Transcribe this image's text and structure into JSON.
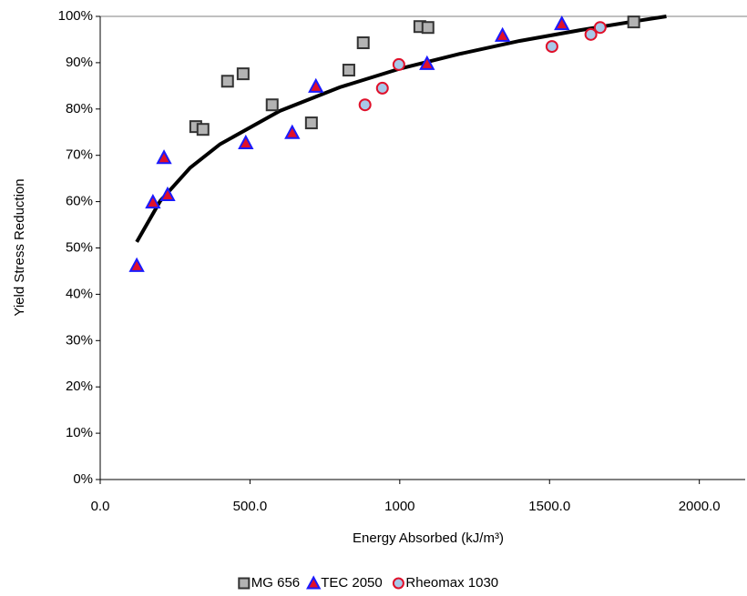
{
  "chart_data": {
    "type": "scatter",
    "xlabel": "Energy Absorbed (kJ/m³)",
    "ylabel": "Yield Stress Reduction",
    "xlim": [
      0,
      2150
    ],
    "xticks": [
      {
        "value": 0,
        "label": "0.0"
      },
      {
        "value": 500,
        "label": "500.0"
      },
      1000,
      {
        "value": 1500,
        "label": "1500.0"
      },
      {
        "value": 2000,
        "label": "2000.0"
      }
    ],
    "ylim": [
      0,
      100
    ],
    "yticks": [
      {
        "value": 0,
        "label": "0%"
      },
      {
        "value": 10,
        "label": "10%"
      },
      {
        "value": 20,
        "label": "20%"
      },
      {
        "value": 30,
        "label": "30%"
      },
      {
        "value": 40,
        "label": "40%"
      },
      {
        "value": 50,
        "label": "50%"
      },
      {
        "value": 60,
        "label": "60%"
      },
      {
        "value": 70,
        "label": "70%"
      },
      {
        "value": 80,
        "label": "80%"
      },
      {
        "value": 90,
        "label": "90%"
      },
      {
        "value": 100,
        "label": "100%"
      }
    ],
    "grid": false,
    "legend": "bottom",
    "series": [
      {
        "name": "MG 656",
        "marker": "square",
        "color": "#b3b3b3",
        "edgecolor": "#333333",
        "x": [
          319,
          343,
          425,
          477,
          574,
          705,
          830,
          878,
          1067,
          1094,
          1781
        ],
        "values": [
          76.2,
          75.6,
          86.0,
          87.6,
          80.9,
          77.0,
          88.4,
          94.3,
          97.8,
          97.6,
          98.8
        ]
      },
      {
        "name": "TEC 2050",
        "marker": "triangle",
        "color": "#e0102a",
        "edgecolor": "#1a1aff",
        "x": [
          122,
          176,
          213,
          225,
          486,
          641,
          720,
          1091,
          1343,
          1541
        ],
        "values": [
          46.2,
          59.9,
          69.5,
          61.5,
          72.7,
          74.9,
          84.9,
          89.8,
          95.9,
          98.4
        ]
      },
      {
        "name": "Rheomax 1030",
        "marker": "circle",
        "color": "#a8c8e8",
        "edgecolor": "#e0102a",
        "x": [
          884,
          942,
          997,
          1508,
          1638,
          1669
        ],
        "values": [
          80.9,
          84.5,
          89.6,
          93.5,
          96.1,
          97.6
        ]
      }
    ],
    "trendline": {
      "color": "#000000",
      "x": [
        122,
        200,
        300,
        400,
        600,
        800,
        1000,
        1200,
        1400,
        1600,
        1800,
        1890
      ],
      "values": [
        51.3,
        60.1,
        67.3,
        72.4,
        79.6,
        84.7,
        88.7,
        91.9,
        94.7,
        97.0,
        99.1,
        100
      ]
    }
  }
}
